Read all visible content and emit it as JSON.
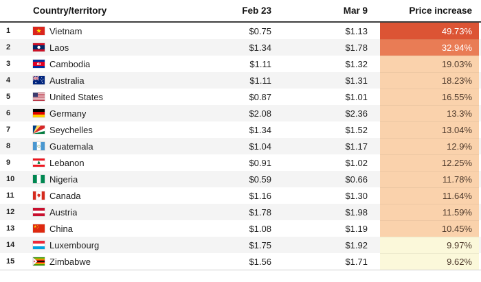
{
  "table": {
    "headers": {
      "country": "Country/territory",
      "feb": "Feb 23",
      "mar": "Mar 9",
      "increase": "Price increase"
    }
  },
  "chart_data": {
    "type": "table",
    "columns": [
      "Rank",
      "Country/territory",
      "Feb 23",
      "Mar 9",
      "Price increase"
    ],
    "rows": [
      {
        "rank": "1",
        "country": "Vietnam",
        "flag": "vietnam",
        "feb_23": "$0.75",
        "mar_9": "$1.13",
        "price_increase": "49.73%",
        "row_bg": "#ffffff",
        "cell_bg": "#dc5434",
        "cell_fg": "#ffffff"
      },
      {
        "rank": "2",
        "country": "Laos",
        "flag": "laos",
        "feb_23": "$1.34",
        "mar_9": "$1.78",
        "price_increase": "32.94%",
        "row_bg": "#f4f4f4",
        "cell_bg": "#e97c55",
        "cell_fg": "#ffffff"
      },
      {
        "rank": "3",
        "country": "Cambodia",
        "flag": "cambodia",
        "feb_23": "$1.11",
        "mar_9": "$1.32",
        "price_increase": "19.03%",
        "row_bg": "#ffffff",
        "cell_bg": "#fad2ac",
        "cell_fg": "#4e3a2c"
      },
      {
        "rank": "4",
        "country": "Australia",
        "flag": "australia",
        "feb_23": "$1.11",
        "mar_9": "$1.31",
        "price_increase": "18.23%",
        "row_bg": "#f4f4f4",
        "cell_bg": "#fad2ac",
        "cell_fg": "#4e3a2c"
      },
      {
        "rank": "5",
        "country": "United States",
        "flag": "united-states",
        "feb_23": "$0.87",
        "mar_9": "$1.01",
        "price_increase": "16.55%",
        "row_bg": "#ffffff",
        "cell_bg": "#fad2ac",
        "cell_fg": "#4e3a2c"
      },
      {
        "rank": "6",
        "country": "Germany",
        "flag": "germany",
        "feb_23": "$2.08",
        "mar_9": "$2.36",
        "price_increase": "13.3%",
        "row_bg": "#f4f4f4",
        "cell_bg": "#fad2ac",
        "cell_fg": "#4e3a2c"
      },
      {
        "rank": "7",
        "country": "Seychelles",
        "flag": "seychelles",
        "feb_23": "$1.34",
        "mar_9": "$1.52",
        "price_increase": "13.04%",
        "row_bg": "#ffffff",
        "cell_bg": "#fad2ac",
        "cell_fg": "#4e3a2c"
      },
      {
        "rank": "8",
        "country": "Guatemala",
        "flag": "guatemala",
        "feb_23": "$1.04",
        "mar_9": "$1.17",
        "price_increase": "12.9%",
        "row_bg": "#f4f4f4",
        "cell_bg": "#fad2ac",
        "cell_fg": "#4e3a2c"
      },
      {
        "rank": "9",
        "country": "Lebanon",
        "flag": "lebanon",
        "feb_23": "$0.91",
        "mar_9": "$1.02",
        "price_increase": "12.25%",
        "row_bg": "#ffffff",
        "cell_bg": "#fad2ac",
        "cell_fg": "#4e3a2c"
      },
      {
        "rank": "10",
        "country": "Nigeria",
        "flag": "nigeria",
        "feb_23": "$0.59",
        "mar_9": "$0.66",
        "price_increase": "11.78%",
        "row_bg": "#f4f4f4",
        "cell_bg": "#fad2ac",
        "cell_fg": "#4e3a2c"
      },
      {
        "rank": "11",
        "country": "Canada",
        "flag": "canada",
        "feb_23": "$1.16",
        "mar_9": "$1.30",
        "price_increase": "11.64%",
        "row_bg": "#ffffff",
        "cell_bg": "#fad2ac",
        "cell_fg": "#4e3a2c"
      },
      {
        "rank": "12",
        "country": "Austria",
        "flag": "austria",
        "feb_23": "$1.78",
        "mar_9": "$1.98",
        "price_increase": "11.59%",
        "row_bg": "#f4f4f4",
        "cell_bg": "#fad2ac",
        "cell_fg": "#4e3a2c"
      },
      {
        "rank": "13",
        "country": "China",
        "flag": "china",
        "feb_23": "$1.08",
        "mar_9": "$1.19",
        "price_increase": "10.45%",
        "row_bg": "#ffffff",
        "cell_bg": "#fad2ac",
        "cell_fg": "#4e3a2c"
      },
      {
        "rank": "14",
        "country": "Luxembourg",
        "flag": "luxembourg",
        "feb_23": "$1.75",
        "mar_9": "$1.92",
        "price_increase": "9.97%",
        "row_bg": "#f4f4f4",
        "cell_bg": "#fbf8da",
        "cell_fg": "#4e3a2c"
      },
      {
        "rank": "15",
        "country": "Zimbabwe",
        "flag": "zimbabwe",
        "feb_23": "$1.56",
        "mar_9": "$1.71",
        "price_increase": "9.62%",
        "row_bg": "#ffffff",
        "cell_bg": "#fbf8da",
        "cell_fg": "#4e3a2c"
      }
    ]
  },
  "colors": {
    "header_border": "#3d3d3d",
    "bottom_border": "#cfcfcf",
    "alt_row": "#f4f4f4",
    "heat_high": "#dc5434",
    "heat_mid_high": "#e97c55",
    "heat_mid": "#fad2ac",
    "heat_low": "#fbf8da",
    "heat_text_dark": "#4e3a2c",
    "heat_text_light": "#ffffff"
  }
}
